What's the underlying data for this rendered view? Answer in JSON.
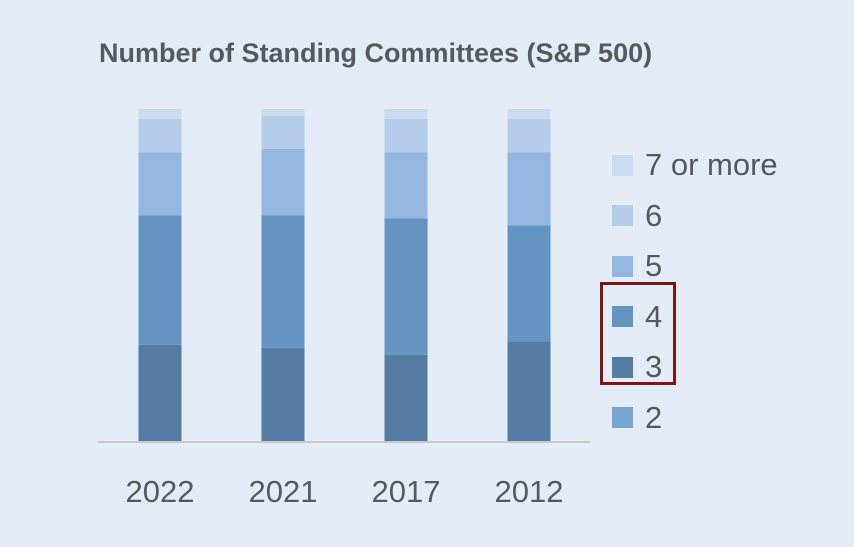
{
  "chart_data": {
    "type": "bar",
    "stacked": true,
    "title": "Number of Standing Committees (S&P 500)",
    "categories": [
      "2022",
      "2021",
      "2017",
      "2012"
    ],
    "series": [
      {
        "name": "2",
        "color": "#7aa6d6",
        "values": [
          0,
          0,
          0,
          0
        ]
      },
      {
        "name": "3",
        "color": "#557ca2",
        "values": [
          29,
          28,
          26,
          30
        ]
      },
      {
        "name": "4",
        "color": "#6494c1",
        "values": [
          39,
          40,
          41,
          35
        ]
      },
      {
        "name": "5",
        "color": "#93b7e0",
        "values": [
          19,
          20,
          20,
          22
        ]
      },
      {
        "name": "6",
        "color": "#b6cdea",
        "values": [
          10,
          10,
          10,
          10
        ]
      },
      {
        "name": "7 or more",
        "color": "#ccdbef",
        "values": [
          3,
          2,
          3,
          3
        ]
      }
    ],
    "ylim": [
      0,
      100
    ],
    "legend_position": "right",
    "legend_order": [
      "7 or more",
      "6",
      "5",
      "4",
      "3",
      "2"
    ],
    "highlighted_legend_items": [
      "4",
      "3"
    ],
    "highlight_color": "#7b1416"
  }
}
